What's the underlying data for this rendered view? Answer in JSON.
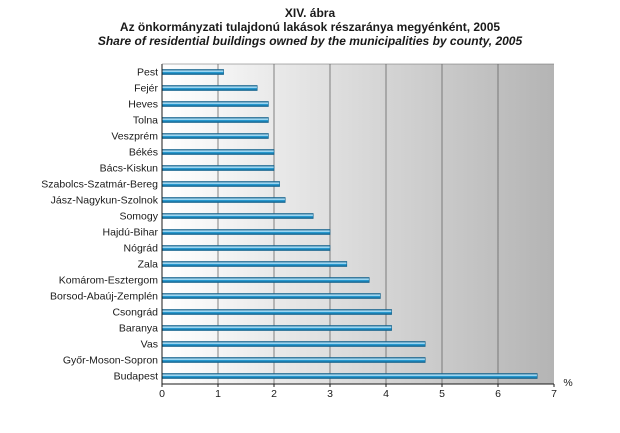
{
  "chart_data": {
    "type": "bar",
    "orientation": "horizontal",
    "title_number": "XIV. ábra",
    "title_hu": "Az önkormányzati tulajdonú lakások részaránya megyénként, 2005",
    "title_en": "Share of residential buildings owned by the municipalities by county, 2005",
    "unit_label": "%",
    "categories": [
      "Pest",
      "Fejér",
      "Heves",
      "Tolna",
      "Veszprém",
      "Békés",
      "Bács-Kiskun",
      "Szabolcs-Szatmár-Bereg",
      "Jász-Nagykun-Szolnok",
      "Somogy",
      "Hajdú-Bihar",
      "Nógrád",
      "Zala",
      "Komárom-Esztergom",
      "Borsod-Abaúj-Zemplén",
      "Csongrád",
      "Baranya",
      "Vas",
      "Győr-Moson-Sopron",
      "Budapest"
    ],
    "values": [
      1.1,
      1.7,
      1.9,
      1.9,
      1.9,
      2.0,
      2.0,
      2.1,
      2.2,
      2.7,
      3.0,
      3.0,
      3.3,
      3.7,
      3.9,
      4.1,
      4.1,
      4.7,
      4.7,
      6.7
    ],
    "xlim": [
      0,
      7
    ],
    "xticks": [
      "0",
      "1",
      "2",
      "3",
      "4",
      "5",
      "6",
      "7"
    ],
    "grid": "vertical",
    "bar_color": "#2a9fd6",
    "bar_dark": "#0f5f8a",
    "bar_light": "#bfe8fb",
    "plot_gradient_light": "#ffffff",
    "plot_gradient_dark": "#b4b4b4",
    "grid_color": "#666666",
    "axis_color": "#1a1a1a"
  }
}
